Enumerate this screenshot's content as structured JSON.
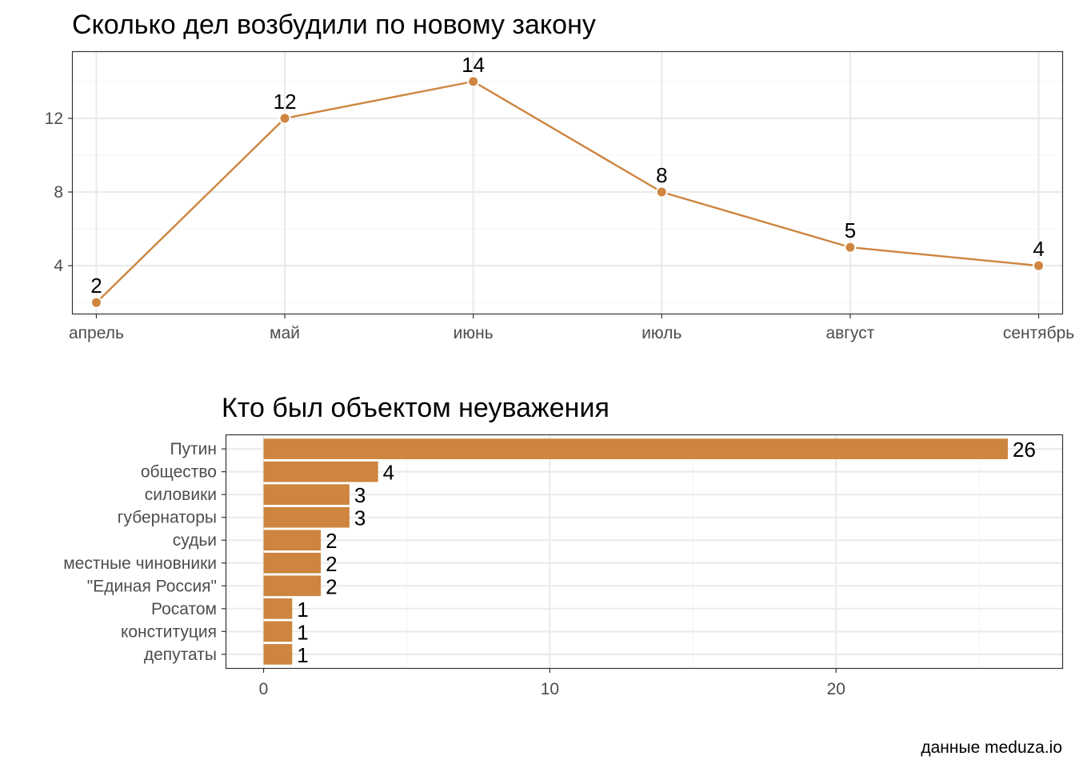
{
  "colors": {
    "accent": "#cd853f",
    "grid_major": "#ebebeb",
    "grid_minor": "#f5f5f5",
    "panel_border": "#333333",
    "tick_text": "#4d4d4d"
  },
  "caption": "данные meduza.io",
  "chart_data": [
    {
      "type": "line",
      "title": "Сколько дел возбудили по новому закону",
      "xlabel": "",
      "ylabel": "",
      "categories": [
        "апрель",
        "май",
        "июнь",
        "июль",
        "август",
        "сентябрь"
      ],
      "values": [
        2,
        12,
        14,
        8,
        5,
        4
      ],
      "data_labels": [
        "2",
        "12",
        "14",
        "8",
        "5",
        "4"
      ],
      "y_ticks": [
        4,
        8,
        12
      ],
      "y_tick_labels": [
        "4",
        "8",
        "12"
      ],
      "ylim": [
        1.4,
        15.6
      ],
      "grid": true,
      "markers": true
    },
    {
      "type": "bar",
      "orientation": "horizontal",
      "title": "Кто был объектом неуважения",
      "xlabel": "",
      "ylabel": "",
      "categories": [
        "Путин",
        "общество",
        "силовики",
        "губернаторы",
        "судьи",
        "местные чиновники",
        "\"Единая Россия\"",
        "Росатом",
        "конституция",
        "депутаты"
      ],
      "values": [
        26,
        4,
        3,
        3,
        2,
        2,
        2,
        1,
        1,
        1
      ],
      "data_labels": [
        "26",
        "4",
        "3",
        "3",
        "2",
        "2",
        "2",
        "1",
        "1",
        "1"
      ],
      "x_ticks": [
        0,
        10,
        20
      ],
      "x_tick_labels": [
        "0",
        "10",
        "20"
      ],
      "xlim": [
        -1.3,
        27.9
      ],
      "grid": true
    }
  ]
}
